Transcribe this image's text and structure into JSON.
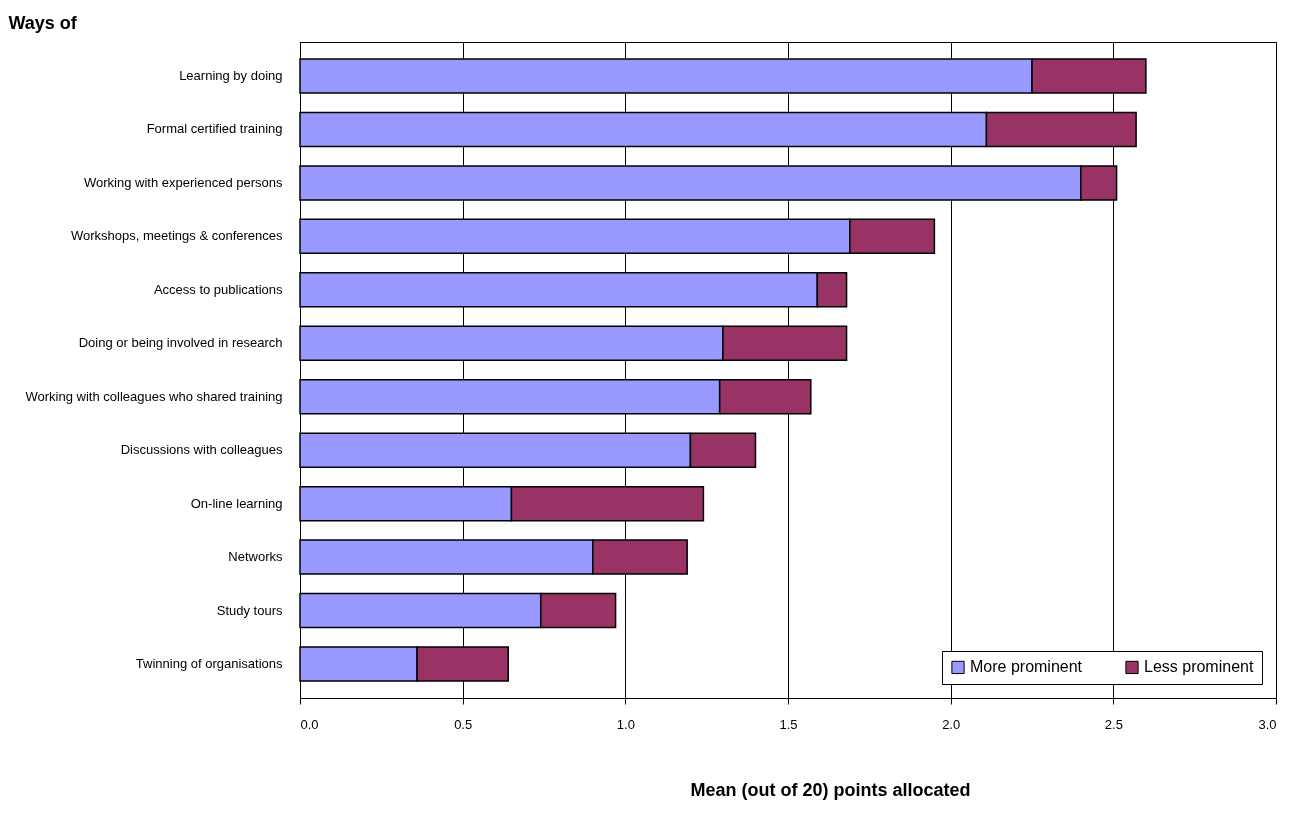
{
  "chart_data": {
    "type": "bar",
    "orientation": "horizontal",
    "stacked": true,
    "ylabel": "Ways of",
    "xlabel": "Mean (out of 20) points allocated",
    "categories": [
      "Learning by doing",
      "Formal certified training",
      "Working with experienced persons",
      "Workshops, meetings & conferences",
      "Access to publications",
      "Doing or being involved in research",
      "Working with colleagues who shared training",
      "Discussions with colleagues",
      "On-line learning",
      "Networks",
      "Study tours",
      "Twinning of organisations"
    ],
    "series": [
      {
        "name": "More prominent",
        "color": "#9999ff",
        "values": [
          2.25,
          2.11,
          2.4,
          1.69,
          1.59,
          1.3,
          1.29,
          1.2,
          0.65,
          0.9,
          0.74,
          0.36
        ]
      },
      {
        "name": "Less prominent",
        "color": "#993366",
        "values": [
          0.35,
          0.46,
          0.11,
          0.26,
          0.09,
          0.38,
          0.28,
          0.2,
          0.59,
          0.29,
          0.23,
          0.28
        ]
      }
    ],
    "xlim": [
      0,
      3
    ],
    "xticks": [
      {
        "value": 0,
        "label": "0.0"
      },
      {
        "value": 0.5,
        "label": "0.5"
      },
      {
        "value": 1,
        "label": "1.0"
      },
      {
        "value": 1.5,
        "label": "1.5"
      },
      {
        "value": 2,
        "label": "2.0"
      },
      {
        "value": 2.5,
        "label": "2.5"
      },
      {
        "value": 3,
        "label": "3.0"
      }
    ],
    "grid": "x",
    "legend": "bottom right"
  }
}
